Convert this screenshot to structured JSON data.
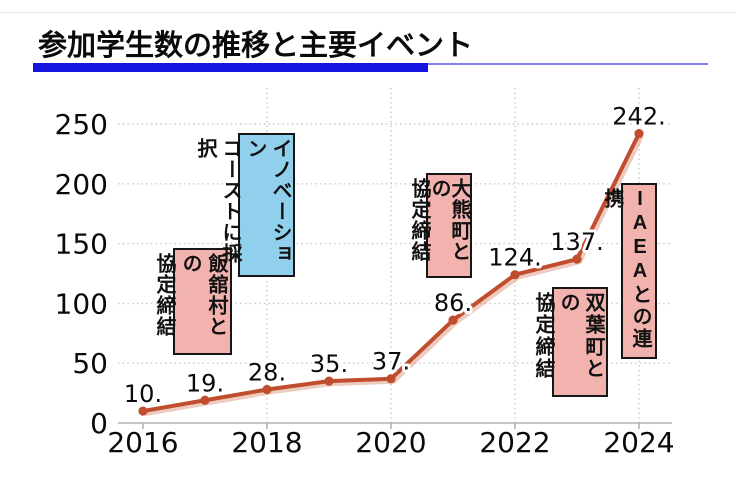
{
  "title": "参加学生数の推移と主要イベント",
  "colors": {
    "underline_primary": "#1515e0",
    "underline_secondary": "#8080ee",
    "line": "#bf4d2e",
    "line_shadow": "rgba(216,139,112,0.45)",
    "annotation_pink": "#f2b3ae",
    "annotation_blue": "#90d0ec",
    "axis": "#b3b3b3",
    "grid": "#c9c9c9",
    "label_text": "#0a0a0a"
  },
  "chart_data": {
    "type": "line",
    "title": "参加学生数の推移と主要イベント",
    "x": [
      2016,
      2017,
      2018,
      2019,
      2020,
      2021,
      2022,
      2023,
      2024
    ],
    "values": [
      10,
      19,
      28,
      35,
      37,
      86,
      124,
      137,
      242
    ],
    "point_labels": [
      "10.",
      "19.",
      "28.",
      "35.",
      "37.",
      "86.",
      "124.",
      "137.",
      "242."
    ],
    "xticks": [
      2016,
      2018,
      2020,
      2022,
      2024
    ],
    "xtick_labels": [
      "2016",
      "2018",
      "2020",
      "2022",
      "2024"
    ],
    "yticks": [
      0,
      50,
      100,
      150,
      200,
      250
    ],
    "ytick_labels": [
      "0",
      "50",
      "100",
      "150",
      "200",
      "250"
    ],
    "xlim": [
      2015.6,
      2024.53
    ],
    "ylim": [
      0,
      280
    ],
    "grid": "dotted",
    "legend": "none",
    "annotations": [
      {
        "id": "iitate",
        "lines": [
          "飯舘村との",
          "協定締結"
        ],
        "fill": "#f2b3ae"
      },
      {
        "id": "innovation-coast",
        "lines": [
          "イノベーション",
          "コーストに採択"
        ],
        "fill": "#90d0ec"
      },
      {
        "id": "okuma",
        "lines": [
          "大熊町との",
          "協定締結"
        ],
        "fill": "#f2b3ae"
      },
      {
        "id": "futaba",
        "lines": [
          "双葉町との",
          "協定締結"
        ],
        "fill": "#f2b3ae"
      },
      {
        "id": "iaea",
        "lines": [
          "IAEAとの連携"
        ],
        "fill": "#f2b3ae"
      }
    ]
  }
}
